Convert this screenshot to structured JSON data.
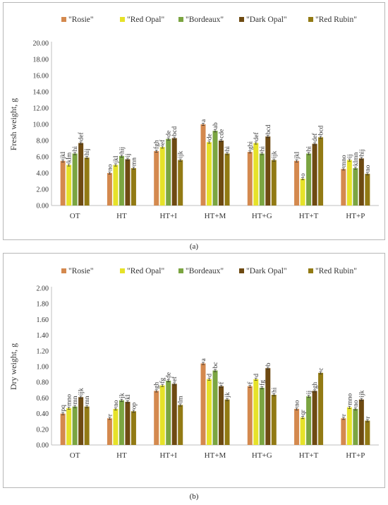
{
  "chart_data": [
    {
      "type": "bar",
      "panel": "(a)",
      "ylabel": "Fresh weight, g",
      "ylim": [
        0,
        20
      ],
      "yticks": [
        "0.00",
        "2.00",
        "4.00",
        "6.00",
        "8.00",
        "10.00",
        "12.00",
        "14.00",
        "16.00",
        "18.00",
        "20.00"
      ],
      "categories": [
        "OT",
        "HT",
        "HT+I",
        "HT+M",
        "HT+G",
        "HT+T",
        "HT+P"
      ],
      "legend_position": "top",
      "series": [
        {
          "name": "\"Rosie\"",
          "color": "#d4894e",
          "values": [
            5.5,
            4.0,
            6.7,
            10.0,
            6.6,
            5.5,
            4.5
          ],
          "letters": [
            "jkl",
            "no",
            "fgh",
            "a",
            "ghi",
            "jkl",
            "mno"
          ]
        },
        {
          "name": "\"Red Opal\"",
          "color": "#e6e229",
          "values": [
            5.0,
            5.0,
            7.2,
            7.8,
            7.7,
            3.3,
            5.6
          ],
          "letters": [
            "klm",
            "jkl",
            "ef",
            "de",
            "def",
            "o",
            "ij"
          ]
        },
        {
          "name": "\"Bordeaux\"",
          "color": "#7ba541",
          "values": [
            6.4,
            6.1,
            8.2,
            9.2,
            6.4,
            6.4,
            4.6
          ],
          "letters": [
            "hi",
            "hij",
            "de",
            "ab",
            "hi",
            "hi",
            "klmn"
          ]
        },
        {
          "name": "\"Dark Opal\"",
          "color": "#6e4a12",
          "values": [
            7.7,
            5.7,
            8.3,
            8.0,
            8.5,
            7.6,
            5.8
          ],
          "letters": [
            "def",
            "ij",
            "bcd",
            "cde",
            "bcd",
            "def",
            "hij"
          ]
        },
        {
          "name": "\"Red Rubin\"",
          "color": "#927a14",
          "values": [
            5.9,
            4.6,
            5.6,
            6.4,
            5.6,
            8.4,
            3.9
          ],
          "letters": [
            "hij",
            "mn",
            "ijk",
            "hi",
            "ijk",
            "bcd",
            "no"
          ]
        }
      ]
    },
    {
      "type": "bar",
      "panel": "(b)",
      "ylabel": "Dry weight, g",
      "ylim": [
        0,
        2
      ],
      "yticks": [
        "0.00",
        "0.20",
        "0.40",
        "0.60",
        "0.80",
        "1.00",
        "1.20",
        "1.40",
        "1.60",
        "1.80",
        "2.00"
      ],
      "categories": [
        "OT",
        "HT",
        "HT+I",
        "HT+M",
        "HT+G",
        "HT+T",
        "HT+P"
      ],
      "legend_position": "top",
      "series": [
        {
          "name": "\"Rosie\"",
          "color": "#d4894e",
          "values": [
            0.4,
            0.34,
            0.69,
            1.04,
            0.75,
            0.46,
            0.34
          ],
          "letters": [
            "pq",
            "r",
            "gh",
            "a",
            "f",
            "no",
            "r"
          ]
        },
        {
          "name": "\"Red Opal\"",
          "color": "#e6e229",
          "values": [
            0.47,
            0.46,
            0.76,
            0.84,
            0.84,
            0.35,
            0.48
          ],
          "letters": [
            "mno",
            "no",
            "fg",
            "d",
            "d",
            "qr",
            "mno"
          ]
        },
        {
          "name": "\"Bordeaux\"",
          "color": "#7ba541",
          "values": [
            0.49,
            0.57,
            0.82,
            0.95,
            0.73,
            0.62,
            0.46
          ],
          "letters": [
            "mn",
            "jk",
            "de",
            "bc",
            "fg",
            "ij",
            "no"
          ]
        },
        {
          "name": "\"Dark Opal\"",
          "color": "#6e4a12",
          "values": [
            0.61,
            0.55,
            0.78,
            0.75,
            0.98,
            0.69,
            0.58
          ],
          "letters": [
            "ijk",
            "kl",
            "ef",
            "f",
            "b",
            "gh",
            "ijk"
          ]
        },
        {
          "name": "\"Red Rubin\"",
          "color": "#927a14",
          "values": [
            0.49,
            0.43,
            0.51,
            0.58,
            0.64,
            0.92,
            0.31
          ],
          "letters": [
            "mn",
            "op",
            "lm",
            "jk",
            "hi",
            "c",
            "r"
          ]
        }
      ]
    }
  ],
  "captions": [
    "(a)",
    "(b)"
  ]
}
